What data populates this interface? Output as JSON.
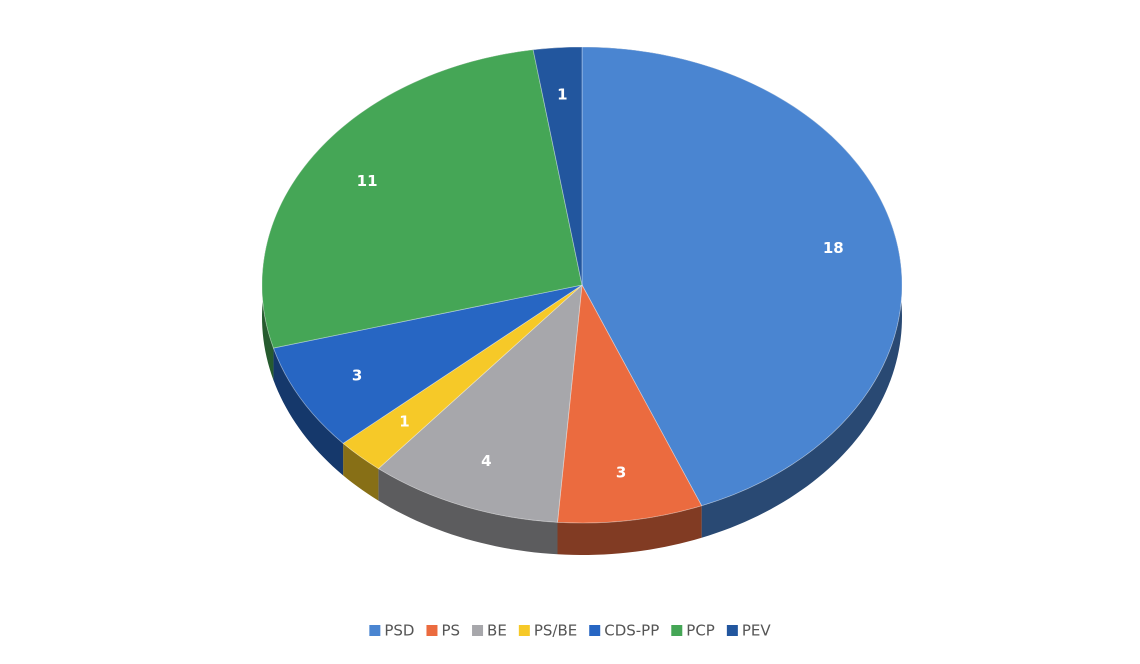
{
  "chart_data": {
    "type": "pie",
    "categories": [
      "PSD",
      "PS",
      "BE",
      "PS/BE",
      "CDS-PP",
      "PCP",
      "PEV"
    ],
    "values": [
      18,
      3,
      4,
      1,
      3,
      11,
      1
    ],
    "colors": [
      "#4a85d1",
      "#eb6b3f",
      "#a7a7ab",
      "#f6c928",
      "#2766c3",
      "#45a656",
      "#22569e"
    ],
    "legend": "bottom"
  }
}
